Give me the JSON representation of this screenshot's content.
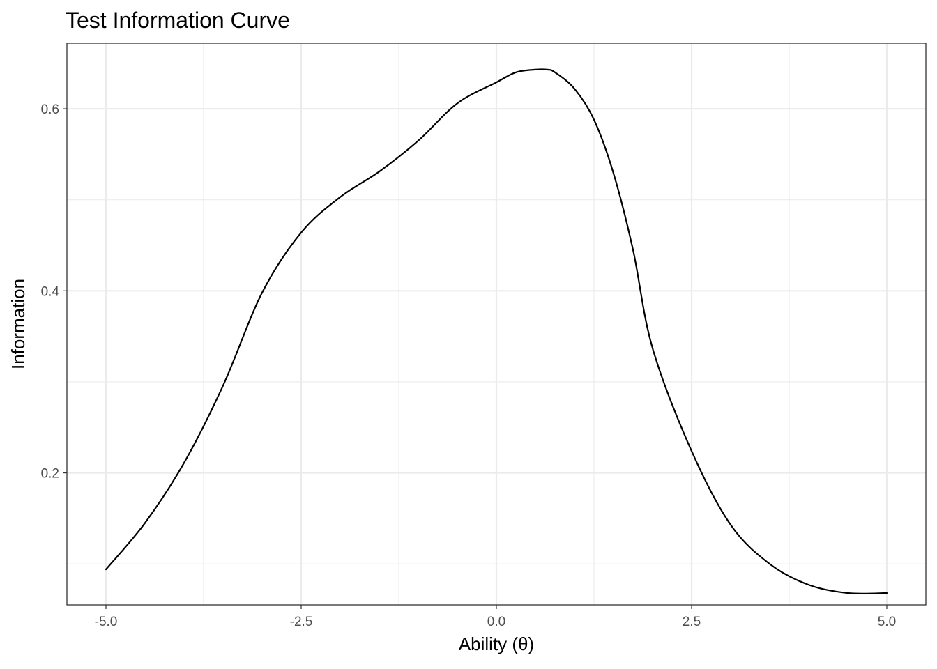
{
  "chart_data": {
    "type": "line",
    "title": "Test Information Curve",
    "xlabel": "Ability (θ)",
    "ylabel": "Information",
    "xlim": [
      -5.5,
      5.5
    ],
    "ylim": [
      0.055,
      0.672
    ],
    "x_ticks": [
      -5.0,
      -2.5,
      0.0,
      2.5,
      5.0
    ],
    "x_tick_labels": [
      "-5.0",
      "-2.5",
      "0.0",
      "2.5",
      "5.0"
    ],
    "y_ticks": [
      0.2,
      0.4,
      0.6
    ],
    "y_tick_labels": [
      "0.2",
      "0.4",
      "0.6"
    ],
    "grid": true,
    "series": [
      {
        "color": "#000000",
        "x": [
          -5.0,
          -4.5,
          -4.0,
          -3.5,
          -3.0,
          -2.5,
          -2.0,
          -1.5,
          -1.0,
          -0.5,
          0.0,
          0.25,
          0.5,
          0.65,
          0.75,
          1.0,
          1.25,
          1.5,
          1.75,
          2.0,
          2.5,
          3.0,
          3.5,
          4.0,
          4.5,
          5.0
        ],
        "y": [
          0.094,
          0.145,
          0.211,
          0.296,
          0.398,
          0.464,
          0.503,
          0.531,
          0.565,
          0.606,
          0.629,
          0.64,
          0.643,
          0.643,
          0.64,
          0.622,
          0.588,
          0.529,
          0.445,
          0.337,
          0.224,
          0.143,
          0.1,
          0.077,
          0.068,
          0.068
        ]
      }
    ]
  }
}
